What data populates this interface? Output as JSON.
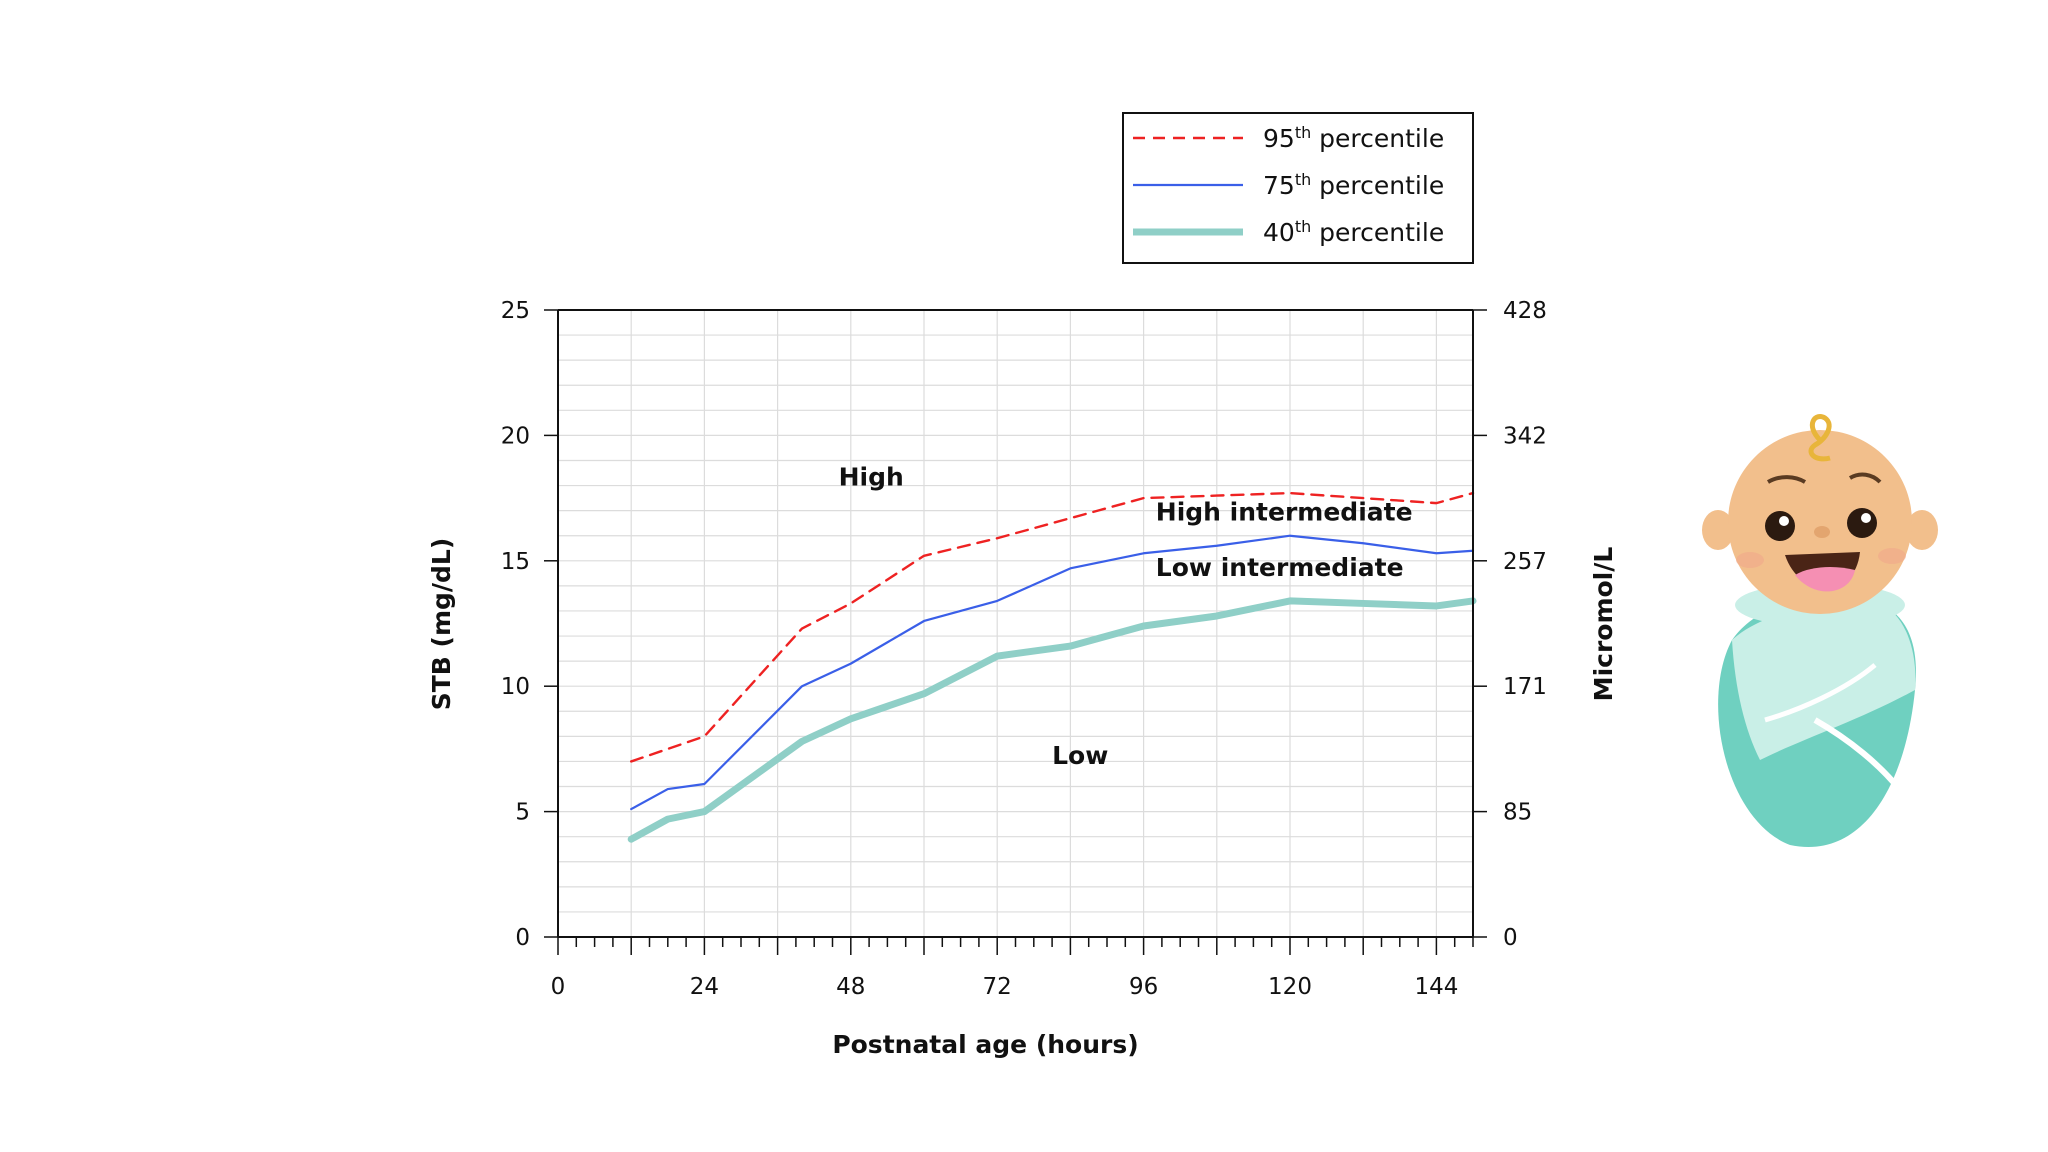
{
  "chart_data": {
    "type": "line",
    "xlabel": "Postnatal age (hours)",
    "ylabel": "STB (mg/dL)",
    "y2label": "Micromol/L",
    "xlim": [
      0,
      150
    ],
    "ylim": [
      0,
      25
    ],
    "x_ticks": [
      "0",
      "24",
      "48",
      "72",
      "96",
      "120",
      "144"
    ],
    "y_ticks": [
      "0",
      "5",
      "10",
      "15",
      "20",
      "25"
    ],
    "y2_ticks": [
      "0",
      "85",
      "171",
      "257",
      "342",
      "428"
    ],
    "grid": true,
    "legend_position": "top-right",
    "series": [
      {
        "name_main": "95",
        "name_sup": "th",
        "name_rest": " percentile",
        "color": "#ee2222",
        "style": "dashed",
        "x": [
          12,
          18,
          24,
          40,
          48,
          60,
          72,
          84,
          96,
          108,
          120,
          132,
          144,
          150
        ],
        "y": [
          7.0,
          7.5,
          8.0,
          12.3,
          13.3,
          15.2,
          15.9,
          16.7,
          17.5,
          17.6,
          17.7,
          17.5,
          17.3,
          17.7
        ]
      },
      {
        "name_main": "75",
        "name_sup": "th",
        "name_rest": " percentile",
        "color": "#3a5fe8",
        "style": "solid",
        "x": [
          12,
          18,
          24,
          40,
          48,
          60,
          72,
          84,
          96,
          108,
          120,
          132,
          144,
          150
        ],
        "y": [
          5.1,
          5.9,
          6.1,
          10.0,
          10.9,
          12.6,
          13.4,
          14.7,
          15.3,
          15.6,
          16.0,
          15.7,
          15.3,
          15.4
        ]
      },
      {
        "name_main": "40",
        "name_sup": "th",
        "name_rest": " percentile",
        "color": "#8fcfc7",
        "style": "thick",
        "x": [
          12,
          18,
          24,
          40,
          48,
          60,
          72,
          84,
          96,
          108,
          120,
          132,
          144,
          150
        ],
        "y": [
          3.9,
          4.7,
          5.0,
          7.8,
          8.7,
          9.7,
          11.2,
          11.6,
          12.4,
          12.8,
          13.4,
          13.3,
          13.2,
          13.4
        ]
      }
    ],
    "annotations": [
      {
        "text": "High",
        "x": 46,
        "y": 18.0
      },
      {
        "text": "High intermediate",
        "x": 98,
        "y": 16.6
      },
      {
        "text": "Low intermediate",
        "x": 98,
        "y": 14.4
      },
      {
        "text": "Low",
        "x": 81,
        "y": 6.9
      }
    ]
  },
  "illustration": {
    "icon": "swaddled-baby-icon",
    "skin": "#f2bf8c",
    "blanket": "#6fd0c0",
    "blanket_light": "#c9efe7",
    "hair": "#e8b53a"
  }
}
